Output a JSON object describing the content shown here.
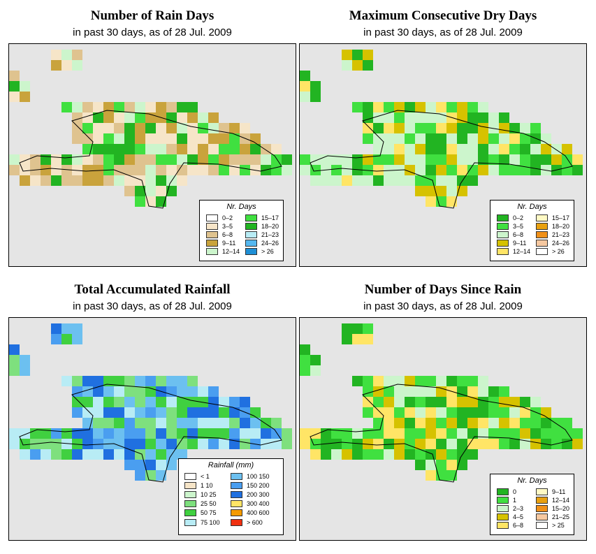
{
  "panels": [
    {
      "title": "Number of Rain Days",
      "subtitle": "in past 30 days, as of  28 Jul. 2009",
      "legend_title": "Nr. Days",
      "legend": [
        {
          "label": "0–2",
          "color": "#ffffff"
        },
        {
          "label": "3–5",
          "color": "#f6e5c8"
        },
        {
          "label": "6–8",
          "color": "#dfc38f"
        },
        {
          "label": "9–11",
          "color": "#c9a33c"
        },
        {
          "label": "12–14",
          "color": "#ccf5cc"
        },
        {
          "label": "15–17",
          "color": "#40e040"
        },
        {
          "label": "18–20",
          "color": "#22b422"
        },
        {
          "label": "21–23",
          "color": "#b8ecf5"
        },
        {
          "label": "24–26",
          "color": "#55b8f0"
        },
        {
          "label": "> 26",
          "color": "#1e8fd6"
        }
      ]
    },
    {
      "title": "Maximum Consecutive Dry Days",
      "subtitle": "in past 30 days, as of  28 Jul. 2009",
      "legend_title": "Nr. Days",
      "legend": [
        {
          "label": "0–2",
          "color": "#22b422"
        },
        {
          "label": "3–5",
          "color": "#40e040"
        },
        {
          "label": "6–8",
          "color": "#ccf5cc"
        },
        {
          "label": "9–11",
          "color": "#d6c200"
        },
        {
          "label": "12–14",
          "color": "#ffe566"
        },
        {
          "label": "15–17",
          "color": "#fff9c4"
        },
        {
          "label": "18–20",
          "color": "#e8a010"
        },
        {
          "label": "21–23",
          "color": "#f09018"
        },
        {
          "label": "24–26",
          "color": "#f6c8a0"
        },
        {
          "label": "> 26",
          "color": "#ffffff"
        }
      ]
    },
    {
      "title": "Total Accumulated Rainfall",
      "subtitle": "in past 30 days, as of  28 Jul. 2009",
      "legend_title": "Rainfall (mm)",
      "legend": [
        {
          "label": "< 1",
          "color": "#ffffff"
        },
        {
          "label": "1    10",
          "color": "#f6e5c8"
        },
        {
          "label": "10    25",
          "color": "#ccf5cc"
        },
        {
          "label": "25    50",
          "color": "#7ee07e"
        },
        {
          "label": "50    75",
          "color": "#40d040"
        },
        {
          "label": "75   100",
          "color": "#b8ecf5"
        },
        {
          "label": "100   150",
          "color": "#6cc0f0"
        },
        {
          "label": "150   200",
          "color": "#4a9ef0"
        },
        {
          "label": "200   300",
          "color": "#2070e0"
        },
        {
          "label": "300   400",
          "color": "#ffe566"
        },
        {
          "label": "400   600",
          "color": "#f59a00"
        },
        {
          "label": "> 600",
          "color": "#f03010"
        }
      ]
    },
    {
      "title": "Number of Days Since Rain",
      "subtitle": "in past 30 days, as of  28 Jul. 2009",
      "legend_title": "Nr. Days",
      "legend": [
        {
          "label": "0",
          "color": "#22b422"
        },
        {
          "label": "1",
          "color": "#40e040"
        },
        {
          "label": "2–3",
          "color": "#ccf5cc"
        },
        {
          "label": "4–5",
          "color": "#d6c200"
        },
        {
          "label": "6–8",
          "color": "#ffe566"
        },
        {
          "label": "9–11",
          "color": "#fff9c4"
        },
        {
          "label": "12–14",
          "color": "#e8a010"
        },
        {
          "label": "15–20",
          "color": "#f09018"
        },
        {
          "label": "21–25",
          "color": "#f6c8a0"
        },
        {
          "label": "> 25",
          "color": "#ffffff"
        }
      ]
    }
  ]
}
